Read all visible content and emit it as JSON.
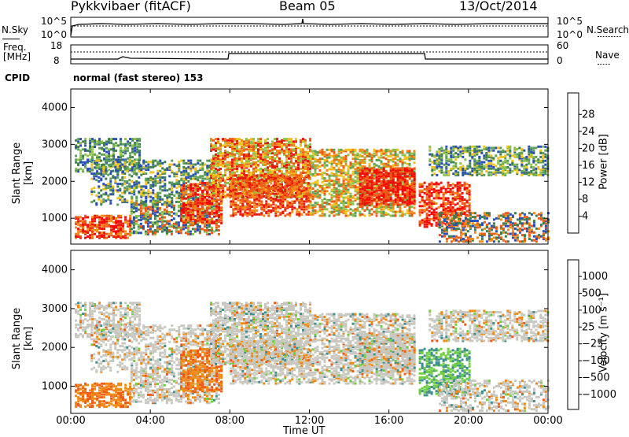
{
  "header": {
    "radar": "Pykkvibaer (fitACF)",
    "beam": "Beam 05",
    "date": "13/Oct/2014"
  },
  "top_panel": {
    "nsky_label": "N.Sky",
    "nsky_ticks": [
      "10^5",
      "10^0"
    ],
    "nsearch_label": "N.Search",
    "nsearch_ticks": [
      "10^5",
      "10^0"
    ],
    "freq_label": "Freq.",
    "freq_unit": "[MHz]",
    "freq_ticks": [
      "18",
      "8"
    ],
    "nave_label": "Nave",
    "nave_ticks": [
      "60",
      "0"
    ],
    "cpid_label": "CPID",
    "cpid_value": "normal (fast stereo) 153"
  },
  "colors": {
    "power_scale": [
      "#1a1aff",
      "#2a4fb8",
      "#3f7f4f",
      "#5da05a",
      "#8fc24a",
      "#f2c21a",
      "#f28a17",
      "#f05a14",
      "#e8180c",
      "#ff0000"
    ],
    "velocity_scale": [
      "#2255b0",
      "#2f6fb8",
      "#3f8f8f",
      "#6fcf3f",
      "#c8c8c0",
      "#f2c21a",
      "#f08a17",
      "#f05a14",
      "#ff0000"
    ]
  },
  "chart_data": [
    {
      "type": "heatmap",
      "title": "Power",
      "ylabel": "Slant Range [km]",
      "ylim": [
        300,
        4500
      ],
      "xlim": [
        "00:00",
        "24:00"
      ],
      "yticks": [
        "4000",
        "3000",
        "2000",
        "1000"
      ],
      "colorbar_label": "Power [dB]",
      "colorbar_ticks": [
        "28",
        "24",
        "20",
        "16",
        "12",
        "8",
        "4"
      ],
      "colorbar_range": [
        0,
        32
      ]
    },
    {
      "type": "heatmap",
      "title": "Velocity",
      "ylabel": "Slant Range [km]",
      "ylim": [
        300,
        4500
      ],
      "xlim": [
        "00:00",
        "24:00"
      ],
      "yticks": [
        "4000",
        "3000",
        "2000",
        "1000"
      ],
      "xticks": [
        "00:00",
        "04:00",
        "08:00",
        "12:00",
        "16:00",
        "20:00",
        "00:00"
      ],
      "xlabel": "Time UT",
      "colorbar_label": "Velocity [m s⁻¹]",
      "colorbar_ticks": [
        "1000",
        "500",
        "100",
        "25",
        "−25",
        "−100",
        "−500",
        "−1000"
      ]
    }
  ]
}
